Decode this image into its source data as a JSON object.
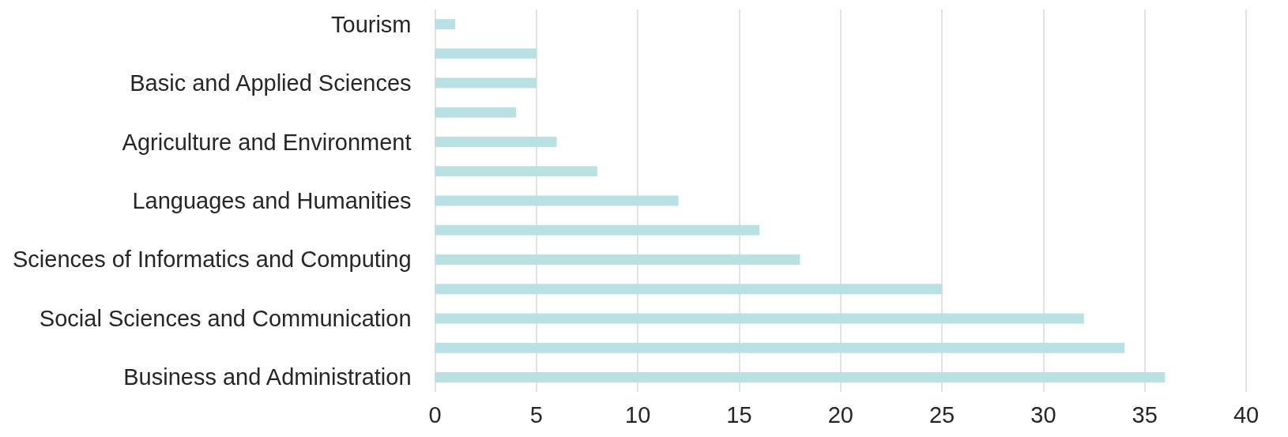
{
  "chart_data": {
    "type": "bar",
    "orientation": "horizontal",
    "categories": [
      "Tourism",
      null,
      "Basic and Applied Sciences",
      null,
      "Agriculture and Environment",
      null,
      "Languages and Humanities",
      null,
      "Sciences of Informatics and Computing",
      null,
      "Social Sciences and Communication",
      null,
      "Business and Administration"
    ],
    "values": [
      1,
      5,
      5,
      4,
      6,
      8,
      12,
      16,
      18,
      25,
      32,
      34,
      36
    ],
    "color": "#b9e0e2",
    "xlim": [
      0,
      40
    ],
    "xticks": [
      0,
      5,
      10,
      15,
      20,
      25,
      30,
      35,
      40
    ],
    "grid": "x"
  }
}
